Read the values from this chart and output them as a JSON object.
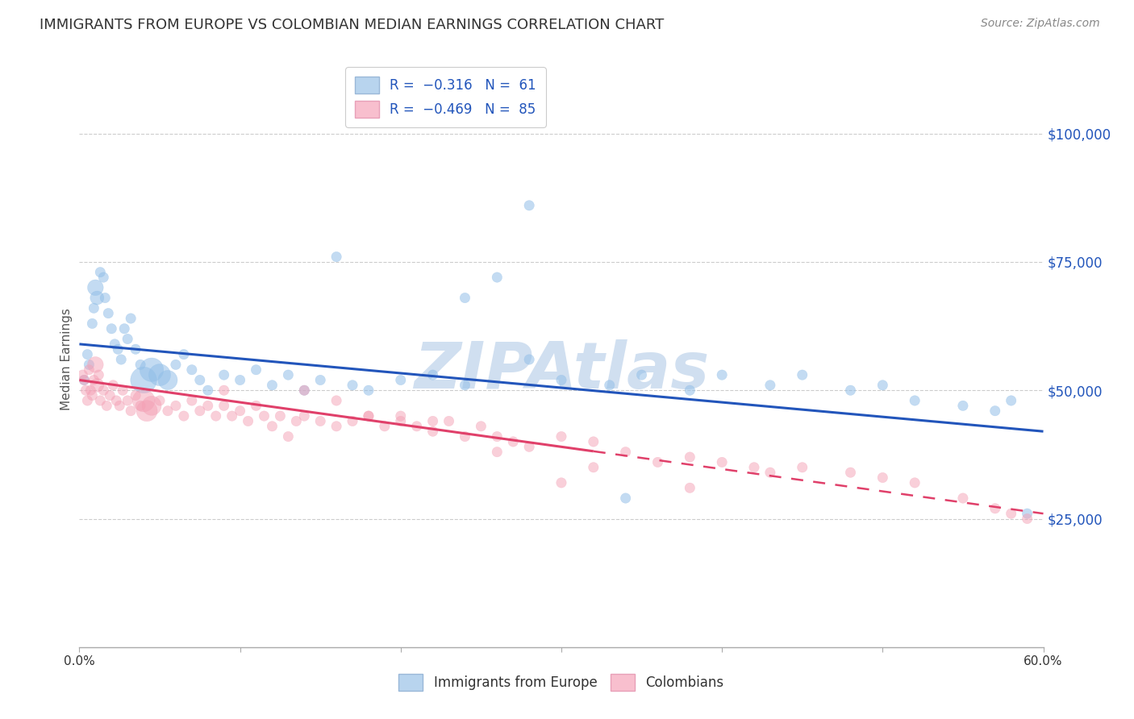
{
  "title": "IMMIGRANTS FROM EUROPE VS COLOMBIAN MEDIAN EARNINGS CORRELATION CHART",
  "source": "Source: ZipAtlas.com",
  "ylabel": "Median Earnings",
  "right_yticks": [
    25000,
    50000,
    75000,
    100000
  ],
  "right_ytick_labels": [
    "$25,000",
    "$50,000",
    "$75,000",
    "$100,000"
  ],
  "legend_bottom": [
    "Immigrants from Europe",
    "Colombians"
  ],
  "blue_color": "#92bfe8",
  "pink_color": "#f4a0b5",
  "blue_line_color": "#2255bb",
  "pink_line_color": "#e0406a",
  "watermark": "ZIPAtlas",
  "watermark_color": "#d0dff0",
  "title_color": "#333333",
  "title_fontsize": 13,
  "source_fontsize": 10,
  "blue_points_x": [
    0.3,
    0.5,
    0.6,
    0.8,
    0.9,
    1.0,
    1.1,
    1.3,
    1.5,
    1.6,
    1.8,
    2.0,
    2.2,
    2.4,
    2.6,
    2.8,
    3.0,
    3.2,
    3.5,
    3.8,
    4.0,
    4.5,
    5.0,
    5.5,
    6.0,
    6.5,
    7.0,
    7.5,
    8.0,
    9.0,
    10.0,
    11.0,
    12.0,
    13.0,
    14.0,
    15.0,
    17.0,
    18.0,
    20.0,
    22.0,
    24.0,
    26.0,
    28.0,
    30.0,
    33.0,
    35.0,
    38.0,
    40.0,
    43.0,
    45.0,
    48.0,
    50.0,
    52.0,
    55.0,
    57.0,
    58.0,
    59.0,
    28.0,
    16.0,
    24.0,
    34.0
  ],
  "blue_points_y": [
    52000,
    57000,
    55000,
    63000,
    66000,
    70000,
    68000,
    73000,
    72000,
    68000,
    65000,
    62000,
    59000,
    58000,
    56000,
    62000,
    60000,
    64000,
    58000,
    55000,
    52000,
    54000,
    53000,
    52000,
    55000,
    57000,
    54000,
    52000,
    50000,
    53000,
    52000,
    54000,
    51000,
    53000,
    50000,
    52000,
    51000,
    50000,
    52000,
    53000,
    51000,
    72000,
    56000,
    52000,
    51000,
    53000,
    50000,
    53000,
    51000,
    53000,
    50000,
    51000,
    48000,
    47000,
    46000,
    48000,
    26000,
    86000,
    76000,
    68000,
    29000
  ],
  "blue_points_s": [
    80,
    80,
    80,
    80,
    80,
    200,
    150,
    80,
    80,
    80,
    80,
    80,
    80,
    80,
    80,
    80,
    80,
    80,
    80,
    80,
    550,
    450,
    380,
    300,
    80,
    80,
    80,
    80,
    80,
    80,
    80,
    80,
    80,
    80,
    80,
    80,
    80,
    80,
    80,
    80,
    80,
    80,
    80,
    80,
    80,
    80,
    80,
    80,
    80,
    80,
    80,
    80,
    80,
    80,
    80,
    80,
    80,
    80,
    80,
    80,
    80
  ],
  "pink_points_x": [
    0.2,
    0.3,
    0.4,
    0.5,
    0.6,
    0.7,
    0.8,
    0.9,
    1.0,
    1.1,
    1.2,
    1.3,
    1.5,
    1.7,
    1.9,
    2.1,
    2.3,
    2.5,
    2.7,
    3.0,
    3.2,
    3.5,
    3.8,
    4.0,
    4.2,
    4.5,
    5.0,
    5.5,
    6.0,
    6.5,
    7.0,
    7.5,
    8.0,
    8.5,
    9.0,
    9.5,
    10.0,
    10.5,
    11.0,
    11.5,
    12.0,
    12.5,
    13.0,
    13.5,
    14.0,
    15.0,
    16.0,
    17.0,
    18.0,
    19.0,
    20.0,
    21.0,
    22.0,
    23.0,
    24.0,
    25.0,
    26.0,
    27.0,
    28.0,
    30.0,
    32.0,
    34.0,
    36.0,
    38.0,
    40.0,
    42.0,
    43.0,
    45.0,
    48.0,
    50.0,
    52.0,
    55.0,
    57.0,
    58.0,
    59.0,
    9.0,
    18.0,
    14.0,
    22.0,
    30.0,
    38.0,
    16.0,
    20.0,
    26.0,
    32.0
  ],
  "pink_points_y": [
    53000,
    52000,
    50000,
    48000,
    54000,
    50000,
    49000,
    52000,
    55000,
    51000,
    53000,
    48000,
    50000,
    47000,
    49000,
    51000,
    48000,
    47000,
    50000,
    48000,
    46000,
    49000,
    47000,
    48000,
    46000,
    47000,
    48000,
    46000,
    47000,
    45000,
    48000,
    46000,
    47000,
    45000,
    47000,
    45000,
    46000,
    44000,
    47000,
    45000,
    43000,
    45000,
    41000,
    44000,
    45000,
    44000,
    43000,
    44000,
    45000,
    43000,
    45000,
    43000,
    42000,
    44000,
    41000,
    43000,
    41000,
    40000,
    39000,
    41000,
    40000,
    38000,
    36000,
    37000,
    36000,
    35000,
    34000,
    35000,
    34000,
    33000,
    32000,
    29000,
    27000,
    26000,
    25000,
    50000,
    45000,
    50000,
    44000,
    32000,
    31000,
    48000,
    44000,
    38000,
    35000
  ],
  "pink_points_s": [
    80,
    80,
    80,
    80,
    80,
    80,
    80,
    80,
    200,
    150,
    80,
    80,
    80,
    80,
    80,
    80,
    80,
    80,
    80,
    80,
    80,
    80,
    80,
    400,
    350,
    300,
    80,
    80,
    80,
    80,
    80,
    80,
    80,
    80,
    80,
    80,
    80,
    80,
    80,
    80,
    80,
    80,
    80,
    80,
    80,
    80,
    80,
    80,
    80,
    80,
    80,
    80,
    80,
    80,
    80,
    80,
    80,
    80,
    80,
    80,
    80,
    80,
    80,
    80,
    80,
    80,
    80,
    80,
    80,
    80,
    80,
    80,
    80,
    80,
    80,
    80,
    80,
    80,
    80,
    80,
    80,
    80,
    80,
    80,
    80
  ],
  "blue_trend_x": [
    0.0,
    60.0
  ],
  "blue_trend_y": [
    59000,
    42000
  ],
  "pink_trend_x": [
    0.0,
    60.0
  ],
  "pink_trend_y": [
    52000,
    26000
  ],
  "pink_dashed_start_x": 32.0,
  "xmin": 0.0,
  "xmax": 60.0,
  "ymin": 0,
  "ymax": 112000,
  "background_color": "#ffffff",
  "grid_color": "#cccccc"
}
